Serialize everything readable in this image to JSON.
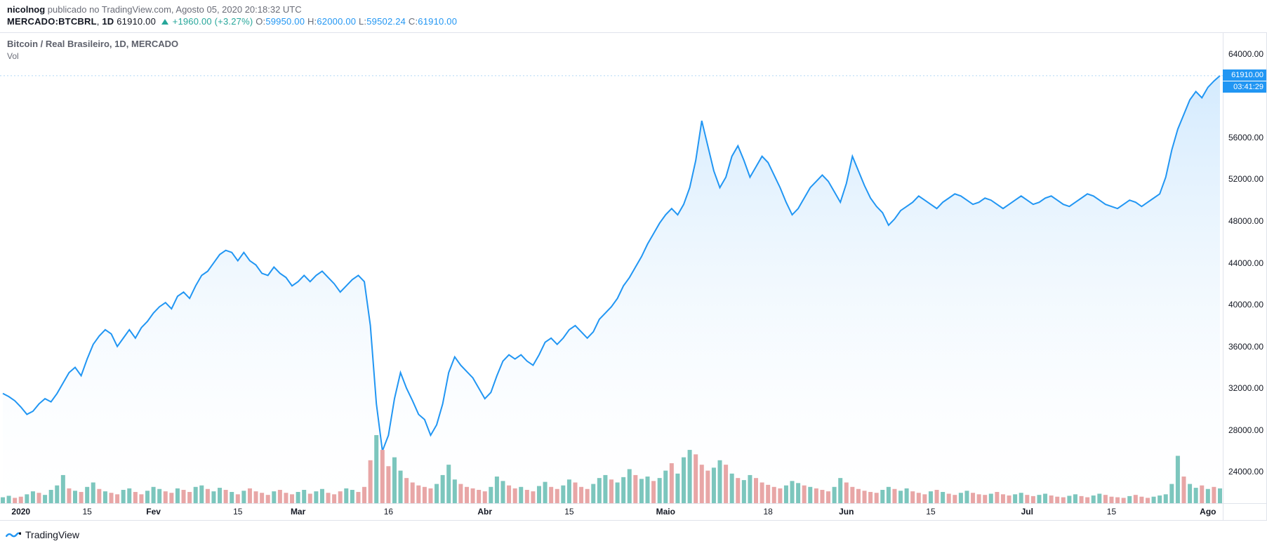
{
  "header": {
    "user": "nicolnog",
    "published_text": "publicado no TradingView.com, Agosto 05, 2020 20:18:32 UTC",
    "symbol": "MERCADO:BTCBRL",
    "interval": "1D",
    "last": "61910.00",
    "change": "+1960.00",
    "change_pct": "(+3.27%)",
    "ohlc": {
      "O": "59950.00",
      "H": "62000.00",
      "L": "59502.24",
      "C": "61910.00"
    }
  },
  "chart": {
    "title": "Bitcoin / Real Brasileiro, 1D, MERCADO",
    "vol_label": "Vol",
    "type": "area",
    "line_color": "#2196f3",
    "fill_top": "#cfe8fd",
    "fill_bottom": "#ffffff",
    "background_color": "#ffffff",
    "vol_up_color": "#7cc6bd",
    "vol_down_color": "#e8a6a6",
    "grid_color": "#e0e3eb",
    "dotted_color": "#b2d7f5",
    "price_tag_bg": "#2196f3",
    "price_tag_fg": "#ffffff",
    "countdown": "03:41:29",
    "y": {
      "min": 21000,
      "max": 66000,
      "ticks": [
        24000,
        28000,
        32000,
        36000,
        40000,
        44000,
        48000,
        52000,
        56000,
        64000
      ],
      "tick_format": ".2f",
      "label_fontsize": 12,
      "current": 61910
    },
    "x": {
      "ticks": [
        {
          "label": "2020",
          "i": 3,
          "bold": true
        },
        {
          "label": "15",
          "i": 14
        },
        {
          "label": "Fev",
          "i": 25,
          "bold": true
        },
        {
          "label": "15",
          "i": 39
        },
        {
          "label": "Mar",
          "i": 49,
          "bold": true
        },
        {
          "label": "16",
          "i": 64
        },
        {
          "label": "Abr",
          "i": 80,
          "bold": true
        },
        {
          "label": "15",
          "i": 94
        },
        {
          "label": "Maio",
          "i": 110,
          "bold": true
        },
        {
          "label": "18",
          "i": 127
        },
        {
          "label": "Jun",
          "i": 140,
          "bold": true
        },
        {
          "label": "15",
          "i": 154
        },
        {
          "label": "Jul",
          "i": 170,
          "bold": true
        },
        {
          "label": "15",
          "i": 184
        },
        {
          "label": "Ago",
          "i": 200,
          "bold": true
        }
      ]
    },
    "price_series": [
      31500,
      31200,
      30800,
      30200,
      29500,
      29800,
      30500,
      31000,
      30700,
      31500,
      32500,
      33500,
      34000,
      33200,
      34800,
      36200,
      37000,
      37600,
      37200,
      36000,
      36800,
      37600,
      36800,
      37800,
      38400,
      39200,
      39800,
      40200,
      39600,
      40800,
      41200,
      40600,
      41800,
      42800,
      43200,
      44000,
      44800,
      45200,
      45000,
      44200,
      45000,
      44200,
      43800,
      43000,
      42800,
      43600,
      43000,
      42600,
      41800,
      42200,
      42800,
      42200,
      42800,
      43200,
      42600,
      42000,
      41200,
      41800,
      42400,
      42800,
      42200,
      38000,
      30500,
      26000,
      27500,
      31000,
      33500,
      32000,
      30800,
      29500,
      29000,
      27500,
      28500,
      30500,
      33500,
      35000,
      34200,
      33600,
      33000,
      32000,
      31000,
      31600,
      33200,
      34600,
      35200,
      34800,
      35200,
      34600,
      34200,
      35200,
      36400,
      36800,
      36200,
      36800,
      37600,
      38000,
      37400,
      36800,
      37400,
      38600,
      39200,
      39800,
      40600,
      41800,
      42600,
      43600,
      44600,
      45800,
      46800,
      47800,
      48600,
      49200,
      48600,
      49600,
      51200,
      53800,
      57600,
      55200,
      52800,
      51200,
      52200,
      54200,
      55200,
      53800,
      52200,
      53200,
      54200,
      53600,
      52400,
      51200,
      49800,
      48600,
      49200,
      50200,
      51200,
      51800,
      52400,
      51800,
      50800,
      49800,
      51600,
      54200,
      52800,
      51400,
      50200,
      49400,
      48800,
      47600,
      48200,
      49000,
      49400,
      49800,
      50400,
      50000,
      49600,
      49200,
      49800,
      50200,
      50600,
      50400,
      50000,
      49600,
      49800,
      50200,
      50000,
      49600,
      49200,
      49600,
      50000,
      50400,
      50000,
      49600,
      49800,
      50200,
      50400,
      50000,
      49600,
      49400,
      49800,
      50200,
      50600,
      50400,
      50000,
      49600,
      49400,
      49200,
      49600,
      50000,
      49800,
      49400,
      49800,
      50200,
      50600,
      52200,
      54800,
      56800,
      58200,
      59600,
      60400,
      59800,
      60800,
      61400,
      61910
    ],
    "vol_max": 270,
    "vol_series": [
      [
        20,
        1
      ],
      [
        25,
        1
      ],
      [
        18,
        0
      ],
      [
        22,
        0
      ],
      [
        30,
        1
      ],
      [
        40,
        1
      ],
      [
        35,
        0
      ],
      [
        28,
        1
      ],
      [
        45,
        1
      ],
      [
        60,
        1
      ],
      [
        95,
        1
      ],
      [
        50,
        0
      ],
      [
        42,
        1
      ],
      [
        38,
        0
      ],
      [
        55,
        1
      ],
      [
        70,
        1
      ],
      [
        48,
        0
      ],
      [
        40,
        1
      ],
      [
        35,
        0
      ],
      [
        30,
        0
      ],
      [
        45,
        1
      ],
      [
        50,
        1
      ],
      [
        38,
        0
      ],
      [
        30,
        0
      ],
      [
        42,
        1
      ],
      [
        55,
        1
      ],
      [
        48,
        1
      ],
      [
        40,
        0
      ],
      [
        35,
        0
      ],
      [
        50,
        1
      ],
      [
        45,
        0
      ],
      [
        38,
        0
      ],
      [
        55,
        1
      ],
      [
        60,
        1
      ],
      [
        48,
        0
      ],
      [
        40,
        1
      ],
      [
        52,
        1
      ],
      [
        45,
        0
      ],
      [
        38,
        1
      ],
      [
        30,
        0
      ],
      [
        42,
        1
      ],
      [
        50,
        0
      ],
      [
        40,
        0
      ],
      [
        35,
        0
      ],
      [
        28,
        0
      ],
      [
        40,
        1
      ],
      [
        45,
        0
      ],
      [
        35,
        0
      ],
      [
        30,
        0
      ],
      [
        38,
        1
      ],
      [
        45,
        1
      ],
      [
        32,
        0
      ],
      [
        40,
        1
      ],
      [
        48,
        1
      ],
      [
        35,
        0
      ],
      [
        30,
        0
      ],
      [
        40,
        0
      ],
      [
        50,
        1
      ],
      [
        45,
        1
      ],
      [
        38,
        0
      ],
      [
        55,
        0
      ],
      [
        145,
        0
      ],
      [
        230,
        1
      ],
      [
        180,
        0
      ],
      [
        125,
        0
      ],
      [
        155,
        1
      ],
      [
        110,
        1
      ],
      [
        85,
        0
      ],
      [
        70,
        0
      ],
      [
        60,
        0
      ],
      [
        55,
        0
      ],
      [
        50,
        0
      ],
      [
        65,
        1
      ],
      [
        95,
        1
      ],
      [
        130,
        1
      ],
      [
        80,
        1
      ],
      [
        65,
        0
      ],
      [
        55,
        0
      ],
      [
        50,
        0
      ],
      [
        45,
        0
      ],
      [
        40,
        0
      ],
      [
        55,
        1
      ],
      [
        90,
        1
      ],
      [
        75,
        1
      ],
      [
        60,
        0
      ],
      [
        50,
        0
      ],
      [
        55,
        1
      ],
      [
        45,
        0
      ],
      [
        40,
        0
      ],
      [
        58,
        1
      ],
      [
        72,
        1
      ],
      [
        55,
        0
      ],
      [
        48,
        0
      ],
      [
        60,
        1
      ],
      [
        80,
        1
      ],
      [
        70,
        0
      ],
      [
        55,
        0
      ],
      [
        48,
        0
      ],
      [
        65,
        1
      ],
      [
        85,
        1
      ],
      [
        95,
        1
      ],
      [
        80,
        0
      ],
      [
        70,
        1
      ],
      [
        88,
        1
      ],
      [
        115,
        1
      ],
      [
        95,
        0
      ],
      [
        82,
        1
      ],
      [
        90,
        1
      ],
      [
        75,
        0
      ],
      [
        85,
        1
      ],
      [
        110,
        1
      ],
      [
        135,
        0
      ],
      [
        100,
        1
      ],
      [
        155,
        1
      ],
      [
        180,
        1
      ],
      [
        165,
        0
      ],
      [
        130,
        0
      ],
      [
        110,
        0
      ],
      [
        120,
        1
      ],
      [
        145,
        1
      ],
      [
        130,
        0
      ],
      [
        100,
        1
      ],
      [
        85,
        0
      ],
      [
        78,
        1
      ],
      [
        95,
        1
      ],
      [
        85,
        0
      ],
      [
        70,
        0
      ],
      [
        62,
        0
      ],
      [
        55,
        0
      ],
      [
        50,
        0
      ],
      [
        60,
        1
      ],
      [
        75,
        1
      ],
      [
        68,
        1
      ],
      [
        60,
        0
      ],
      [
        55,
        1
      ],
      [
        50,
        0
      ],
      [
        45,
        0
      ],
      [
        40,
        0
      ],
      [
        55,
        1
      ],
      [
        85,
        1
      ],
      [
        70,
        0
      ],
      [
        55,
        0
      ],
      [
        48,
        0
      ],
      [
        42,
        0
      ],
      [
        38,
        0
      ],
      [
        35,
        0
      ],
      [
        45,
        1
      ],
      [
        55,
        1
      ],
      [
        48,
        0
      ],
      [
        42,
        1
      ],
      [
        50,
        1
      ],
      [
        40,
        0
      ],
      [
        35,
        0
      ],
      [
        30,
        0
      ],
      [
        40,
        1
      ],
      [
        45,
        0
      ],
      [
        38,
        1
      ],
      [
        32,
        0
      ],
      [
        28,
        0
      ],
      [
        35,
        1
      ],
      [
        42,
        1
      ],
      [
        35,
        0
      ],
      [
        30,
        0
      ],
      [
        28,
        0
      ],
      [
        32,
        1
      ],
      [
        38,
        0
      ],
      [
        30,
        0
      ],
      [
        26,
        0
      ],
      [
        30,
        1
      ],
      [
        35,
        1
      ],
      [
        28,
        0
      ],
      [
        24,
        0
      ],
      [
        28,
        1
      ],
      [
        32,
        1
      ],
      [
        26,
        0
      ],
      [
        22,
        0
      ],
      [
        20,
        0
      ],
      [
        25,
        1
      ],
      [
        30,
        1
      ],
      [
        24,
        0
      ],
      [
        20,
        0
      ],
      [
        26,
        1
      ],
      [
        32,
        1
      ],
      [
        28,
        0
      ],
      [
        22,
        0
      ],
      [
        20,
        0
      ],
      [
        18,
        0
      ],
      [
        24,
        1
      ],
      [
        28,
        0
      ],
      [
        22,
        0
      ],
      [
        18,
        0
      ],
      [
        22,
        1
      ],
      [
        26,
        1
      ],
      [
        30,
        1
      ],
      [
        65,
        1
      ],
      [
        160,
        1
      ],
      [
        90,
        0
      ],
      [
        65,
        1
      ],
      [
        52,
        1
      ],
      [
        60,
        0
      ],
      [
        48,
        1
      ],
      [
        55,
        0
      ],
      [
        50,
        1
      ]
    ]
  },
  "footer": {
    "brand": "TradingView"
  }
}
